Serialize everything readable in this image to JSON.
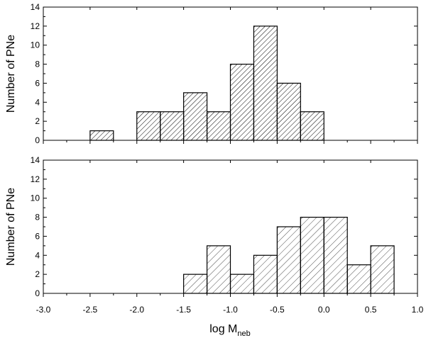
{
  "chart_data": [
    {
      "type": "bar",
      "panel": "top",
      "bin_width": 0.25,
      "bin_left_edges": [
        -2.5,
        -2.0,
        -1.75,
        -1.5,
        -1.25,
        -1.0,
        -0.75,
        -0.5,
        -0.25
      ],
      "values": [
        1,
        3,
        3,
        5,
        3,
        8,
        12,
        6,
        3
      ],
      "xlim": [
        -3.0,
        1.0
      ],
      "ylim": [
        0,
        14
      ],
      "yticks": [
        0,
        2,
        4,
        6,
        8,
        10,
        12,
        14
      ],
      "ylabel": "Number of PNe",
      "fill": "dense diagonal hatching",
      "grid": false
    },
    {
      "type": "bar",
      "panel": "bottom",
      "bin_width": 0.25,
      "bin_left_edges": [
        -1.5,
        -1.25,
        -1.0,
        -0.75,
        -0.5,
        -0.25,
        0.0,
        0.25,
        0.5
      ],
      "values": [
        2,
        5,
        2,
        4,
        7,
        8,
        8,
        3,
        5
      ],
      "xlim": [
        -3.0,
        1.0
      ],
      "ylim": [
        0,
        14
      ],
      "yticks": [
        0,
        2,
        4,
        6,
        8,
        10,
        12,
        14
      ],
      "xticks": [
        "-3.0",
        "-2.5",
        "-2.0",
        "-1.5",
        "-1.0",
        "-0.5",
        "0.0",
        "0.5",
        "1.0"
      ],
      "xtick_values": [
        -3.0,
        -2.5,
        -2.0,
        -1.5,
        -1.0,
        -0.5,
        0.0,
        0.5,
        1.0
      ],
      "ylabel": "Number of PNe",
      "xlabel": "log M",
      "xlabel_subscript": "neb",
      "fill": "sparse diagonal hatching",
      "grid": false
    }
  ],
  "colors": {
    "bar_stroke": "#000000",
    "hatch": "#000000",
    "background": "#ffffff"
  }
}
